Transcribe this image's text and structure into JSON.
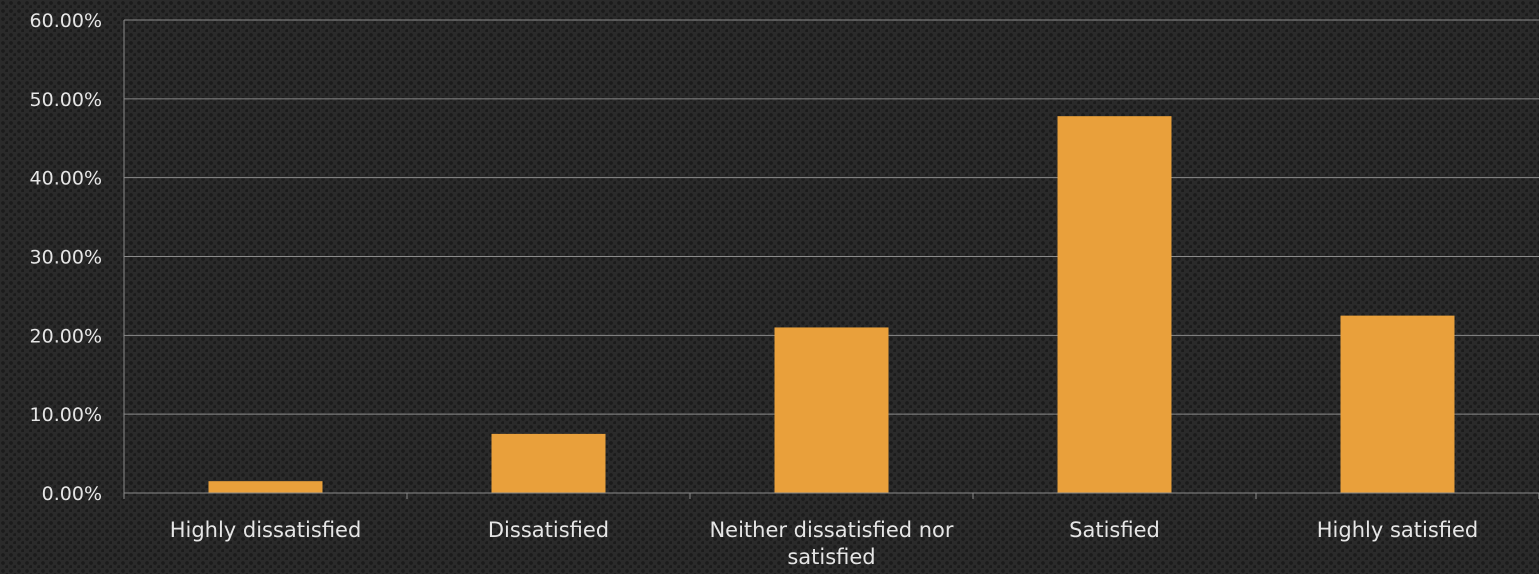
{
  "chart_data": {
    "type": "bar",
    "title": "",
    "xlabel": "",
    "ylabel": "",
    "categories": [
      "Highly dissatisfied",
      "Dissatisfied",
      "Neither dissatisfied nor satisfied",
      "Satisfied",
      "Highly satisfied"
    ],
    "category_label_lines": [
      [
        "Highly dissatisfied"
      ],
      [
        "Dissatisfied"
      ],
      [
        "Neither dissatisfied nor",
        "satisfied"
      ],
      [
        "Satisfied"
      ],
      [
        "Highly satisfied"
      ]
    ],
    "values": [
      1.5,
      7.5,
      21.0,
      47.8,
      22.5
    ],
    "ylim": [
      0,
      60
    ],
    "yticks": [
      0,
      10,
      20,
      30,
      40,
      50,
      60
    ],
    "ytick_labels": [
      "0.00%",
      "10.00%",
      "20.00%",
      "30.00%",
      "40.00%",
      "50.00%",
      "60.00%"
    ],
    "grid": true,
    "legend": "none",
    "colors": {
      "bar": "#E9A03B",
      "grid": "#8a8a8a",
      "text": "#e6e6e6"
    }
  }
}
